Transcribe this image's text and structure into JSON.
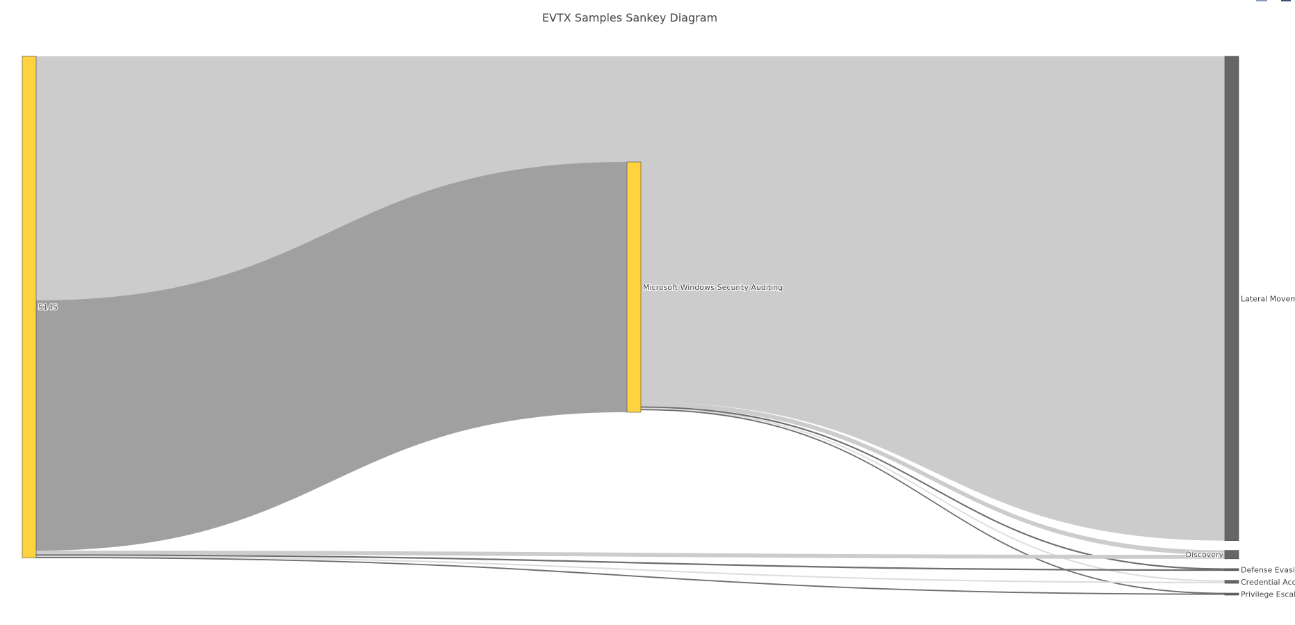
{
  "chart_data": {
    "type": "sankey",
    "title": "EVTX Samples Sankey Diagram",
    "nodes": [
      {
        "id": "5145",
        "label": "5145",
        "color": "#ffd23f",
        "column": 0
      },
      {
        "id": "mwsa",
        "label": "Microsoft-Windows-Security-Auditing",
        "color": "#ffd23f",
        "column": 1
      },
      {
        "id": "lm",
        "label": "Lateral Moveme",
        "color": "#666666",
        "column": 2
      },
      {
        "id": "disc",
        "label": "Discovery",
        "color": "#666666",
        "column": 2
      },
      {
        "id": "def",
        "label": "Defense Evasio",
        "color": "#666666",
        "column": 2
      },
      {
        "id": "cred",
        "label": "Credential Acce",
        "color": "#666666",
        "column": 2
      },
      {
        "id": "priv",
        "label": "Privilege Escala",
        "color": "#666666",
        "column": 2
      }
    ],
    "links": [
      {
        "source": "5145",
        "target": "lm",
        "value": 97.5,
        "color": "#cccccc"
      },
      {
        "source": "5145",
        "target": "mwsa",
        "value": 100,
        "color": "#a0a0a0"
      },
      {
        "source": "mwsa",
        "target": "lm",
        "value": 96,
        "color": "#cccccc"
      },
      {
        "source": "mwsa",
        "target": "disc",
        "value": 1.8,
        "color": "#cccccc"
      },
      {
        "source": "mwsa",
        "target": "def",
        "value": 0.4,
        "color": "#6e6e6e"
      },
      {
        "source": "mwsa",
        "target": "cred",
        "value": 0.6,
        "color": "#dddddd"
      },
      {
        "source": "mwsa",
        "target": "priv",
        "value": 0.3,
        "color": "#6e6e6e"
      },
      {
        "source": "5145",
        "target": "disc",
        "value": 1.6,
        "color": "#cccccc"
      },
      {
        "source": "5145",
        "target": "def",
        "value": 0.4,
        "color": "#6e6e6e"
      },
      {
        "source": "5145",
        "target": "cred",
        "value": 0.6,
        "color": "#dddddd"
      },
      {
        "source": "5145",
        "target": "priv",
        "value": 0.3,
        "color": "#6e6e6e"
      }
    ]
  }
}
